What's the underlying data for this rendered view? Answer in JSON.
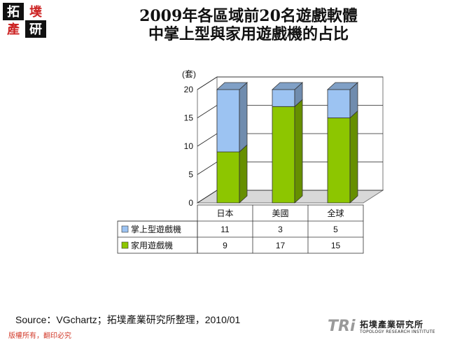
{
  "logo": {
    "text": "拓墣產研",
    "red_color": "#cc2222"
  },
  "title_line1": "2009年各區域前20名遊戲軟體",
  "title_line2": "中掌上型與家用遊戲機的占比",
  "chart_data": {
    "type": "bar",
    "stacked": true,
    "ylabel": "(套)",
    "ylim": [
      0,
      20
    ],
    "yticks": [
      0,
      5,
      10,
      15,
      20
    ],
    "categories": [
      "日本",
      "美國",
      "全球"
    ],
    "series": [
      {
        "name": "家用遊戲機",
        "values": [
          9,
          17,
          15
        ],
        "color": "#8dc600"
      },
      {
        "name": "掌上型遊戲機",
        "values": [
          11,
          3,
          5
        ],
        "color": "#9cc3f2"
      }
    ],
    "table_order": [
      "掌上型遊戲機",
      "家用遊戲機"
    ],
    "grid": true
  },
  "source": "Source：VGchartz；拓墣產業研究所整理，2010/01",
  "footer_left": "版權所有，翻印必究",
  "brand": {
    "mark": "TRi",
    "name": "拓墣產業研究所",
    "english": "TOPOLOGY RESEARCH INSTITUTE"
  }
}
